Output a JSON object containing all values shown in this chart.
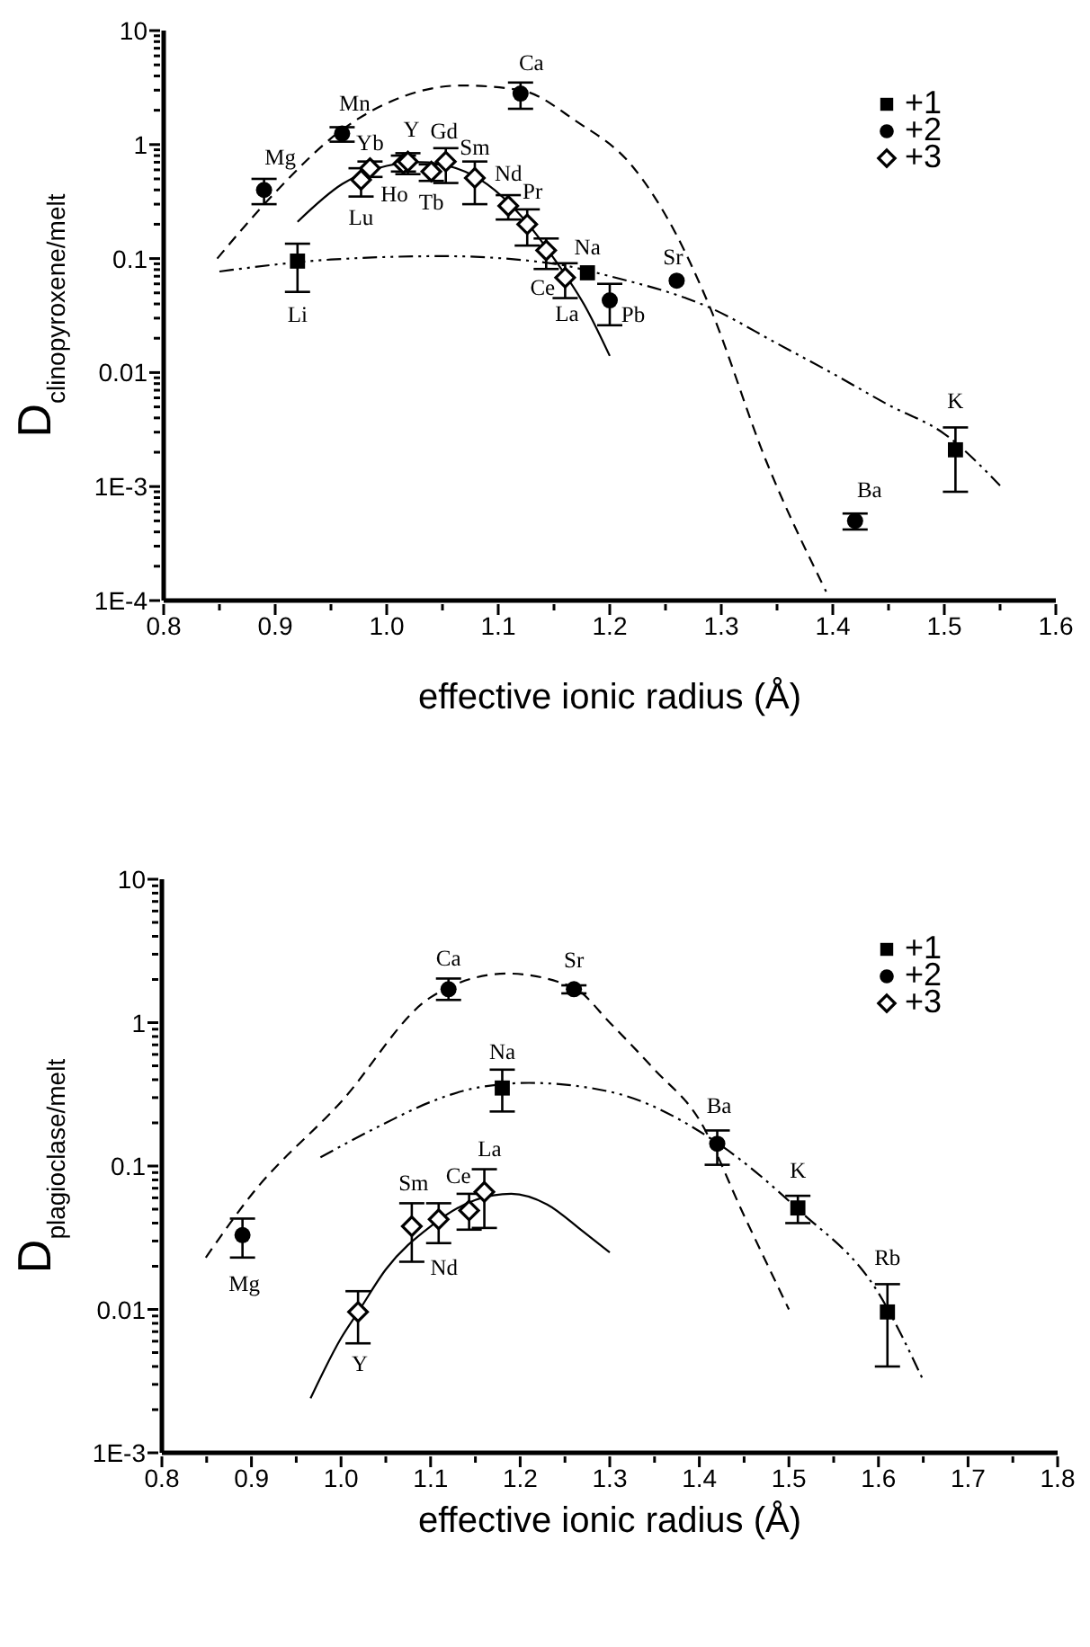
{
  "chart_data": [
    {
      "type": "scatter",
      "xlabel": "effective ionic radius (Å)",
      "ylabel": "D$_{clinopyroxene/melt}$",
      "log": "y",
      "legend": "top right",
      "xlim": [
        0.8,
        1.6
      ],
      "xticks": [
        0.8,
        {
          "value": 0.85,
          "label": null
        },
        0.9,
        {
          "value": 0.95,
          "label": null
        },
        {
          "value": 1,
          "label": "1.0"
        },
        {
          "value": 1.05,
          "label": null
        },
        1.1,
        {
          "value": 1.15,
          "label": null
        },
        1.2,
        {
          "value": 1.25,
          "label": null
        },
        1.3,
        {
          "value": 1.35,
          "label": null
        },
        1.4,
        {
          "value": 1.45,
          "label": null
        },
        1.5,
        {
          "value": 1.55,
          "label": null
        },
        1.6
      ],
      "ylim": [
        0.0001,
        10
      ],
      "yticks": [
        {
          "value": 0.0001,
          "label": "1E-4"
        },
        {
          "value": 0.0002,
          "label": null
        },
        {
          "value": 0.0003,
          "label": null
        },
        {
          "value": 0.0004,
          "label": null
        },
        {
          "value": 0.0005,
          "label": null
        },
        {
          "value": 0.0006,
          "label": null
        },
        {
          "value": 0.0007,
          "label": null
        },
        {
          "value": 0.0008,
          "label": null
        },
        {
          "value": 0.0009,
          "label": null
        },
        {
          "value": 0.001,
          "label": "1E-3"
        },
        {
          "value": 0.002,
          "label": null
        },
        {
          "value": 0.003,
          "label": null
        },
        {
          "value": 0.004,
          "label": null
        },
        {
          "value": 0.005,
          "label": null
        },
        {
          "value": 0.006,
          "label": null
        },
        {
          "value": 0.007,
          "label": null
        },
        {
          "value": 0.008,
          "label": null
        },
        {
          "value": 0.009,
          "label": null
        },
        0.01,
        {
          "value": 0.02,
          "label": null
        },
        {
          "value": 0.03,
          "label": null
        },
        {
          "value": 0.04,
          "label": null
        },
        {
          "value": 0.05,
          "label": null
        },
        {
          "value": 0.06,
          "label": null
        },
        {
          "value": 0.07,
          "label": null
        },
        {
          "value": 0.08,
          "label": null
        },
        {
          "value": 0.09,
          "label": null
        },
        0.1,
        {
          "value": 0.2,
          "label": null
        },
        {
          "value": 0.3,
          "label": null
        },
        {
          "value": 0.4,
          "label": null
        },
        {
          "value": 0.5,
          "label": null
        },
        {
          "value": 0.6,
          "label": null
        },
        {
          "value": 0.7,
          "label": null
        },
        {
          "value": 0.8,
          "label": null
        },
        {
          "value": 0.9,
          "label": null
        },
        1,
        {
          "value": 2,
          "label": null
        },
        {
          "value": 3,
          "label": null
        },
        {
          "value": 4,
          "label": null
        },
        {
          "value": 5,
          "label": null
        },
        {
          "value": 6,
          "label": null
        },
        {
          "value": 7,
          "label": null
        },
        {
          "value": 8,
          "label": null
        },
        {
          "value": 9,
          "label": null
        },
        10
      ],
      "series": [
        {
          "name": "+1",
          "type": "scatter",
          "marker": "square",
          "color": "#000000",
          "x": [
            0.92,
            1.18,
            1.51
          ],
          "values": [
            0.095,
            0.075,
            0.0021
          ],
          "errors": [
            [
              0.051,
              0.135
            ],
            null,
            [
              0.0009,
              0.0033
            ]
          ]
        },
        {
          "name": "+2",
          "type": "scatter",
          "marker": "circle",
          "color": "#000000",
          "x": [
            0.89,
            0.96,
            1.12,
            1.2,
            1.26,
            1.42
          ],
          "values": [
            0.4,
            1.25,
            2.8,
            0.043,
            0.064,
            0.0005
          ],
          "errors": [
            [
              0.3,
              0.5
            ],
            [
              1.06,
              1.42
            ],
            [
              2.06,
              3.5
            ],
            [
              0.026,
              0.06
            ],
            null,
            [
              0.00042,
              0.00058
            ]
          ]
        },
        {
          "name": "+3",
          "type": "scatter",
          "marker": "diamond",
          "color": "#000000",
          "x": [
            0.977,
            0.985,
            1.015,
            1.019,
            1.04,
            1.053,
            1.079,
            1.109,
            1.126,
            1.143,
            1.16
          ],
          "values": [
            0.49,
            0.62,
            0.68,
            0.71,
            0.58,
            0.71,
            0.51,
            0.29,
            0.2,
            0.118,
            0.068
          ],
          "errors": [
            [
              0.35,
              0.62
            ],
            [
              0.52,
              0.71
            ],
            [
              0.58,
              0.8
            ],
            [
              0.55,
              0.84
            ],
            [
              0.48,
              0.67
            ],
            [
              0.46,
              0.93
            ],
            [
              0.3,
              0.71
            ],
            [
              0.22,
              0.36
            ],
            [
              0.13,
              0.27
            ],
            [
              0.081,
              0.15
            ],
            [
              0.045,
              0.091
            ]
          ]
        },
        {
          "type": "line",
          "line_style": "dashdot",
          "color": "#000000",
          "x": [
            0.85,
            0.95,
            1.05,
            1.15,
            1.2,
            1.29,
            1.35,
            1.4,
            1.45,
            1.5,
            1.55
          ],
          "values": [
            0.077,
            0.098,
            0.105,
            0.09,
            0.07,
            0.037,
            0.018,
            0.0098,
            0.0052,
            0.0029,
            0.00102
          ]
        },
        {
          "type": "line",
          "line_style": "dashed",
          "color": "#000000",
          "x": [
            0.848,
            0.9,
            0.96,
            1.0,
            1.067,
            1.12,
            1.17,
            1.22,
            1.26,
            1.29,
            1.34,
            1.394
          ],
          "values": [
            0.1,
            0.38,
            1.35,
            2.3,
            3.3,
            3.0,
            1.6,
            0.65,
            0.16,
            0.037,
            0.0017,
            0.00012
          ]
        },
        {
          "type": "line",
          "line_style": "solid",
          "color": "#000000",
          "x": [
            0.92,
            0.96,
            1.0,
            1.03,
            1.06,
            1.09,
            1.12,
            1.15,
            1.18,
            1.2
          ],
          "values": [
            0.21,
            0.45,
            0.65,
            0.7,
            0.63,
            0.45,
            0.24,
            0.1,
            0.035,
            0.014
          ]
        }
      ],
      "annotations": [
        {
          "text": "Li",
          "x": 0.92,
          "y": 0.095
        },
        {
          "text": "Na",
          "x": 1.18,
          "y": 0.075
        },
        {
          "text": "K",
          "x": 1.51,
          "y": 0.0021
        },
        {
          "text": "Mg",
          "x": 0.89,
          "y": 0.4
        },
        {
          "text": "Mn",
          "x": 0.96,
          "y": 1.25
        },
        {
          "text": "Ca",
          "x": 1.12,
          "y": 2.8
        },
        {
          "text": "Pb",
          "x": 1.2,
          "y": 0.043
        },
        {
          "text": "Sr",
          "x": 1.26,
          "y": 0.064
        },
        {
          "text": "Ba",
          "x": 1.42,
          "y": 0.0005
        },
        {
          "text": "Lu",
          "x": 0.977,
          "y": 0.49
        },
        {
          "text": "Yb",
          "x": 0.985,
          "y": 0.62
        },
        {
          "text": "Ho",
          "x": 1.015,
          "y": 0.68
        },
        {
          "text": "Y",
          "x": 1.019,
          "y": 0.71
        },
        {
          "text": "Tb",
          "x": 1.04,
          "y": 0.58
        },
        {
          "text": "Gd",
          "x": 1.053,
          "y": 0.71
        },
        {
          "text": "Sm",
          "x": 1.079,
          "y": 0.51
        },
        {
          "text": "Nd",
          "x": 1.109,
          "y": 0.29
        },
        {
          "text": "Pr",
          "x": 1.126,
          "y": 0.2
        },
        {
          "text": "Ce",
          "x": 1.143,
          "y": 0.118
        },
        {
          "text": "La",
          "x": 1.16,
          "y": 0.068
        }
      ]
    },
    {
      "type": "scatter",
      "xlabel": "effective ionic radius (Å)",
      "ylabel": "D$_{plagioclase/melt}$",
      "log": "y",
      "legend": "top right",
      "xlim": [
        0.8,
        1.8
      ],
      "xticks": [
        0.8,
        {
          "value": 0.85,
          "label": null
        },
        0.9,
        {
          "value": 0.95,
          "label": null
        },
        {
          "value": 1,
          "label": "1.0"
        },
        {
          "value": 1.05,
          "label": null
        },
        1.1,
        {
          "value": 1.15,
          "label": null
        },
        1.2,
        {
          "value": 1.25,
          "label": null
        },
        1.3,
        {
          "value": 1.35,
          "label": null
        },
        1.4,
        {
          "value": 1.45,
          "label": null
        },
        1.5,
        {
          "value": 1.55,
          "label": null
        },
        1.6,
        {
          "value": 1.65,
          "label": null
        },
        1.7,
        {
          "value": 1.75,
          "label": null
        },
        1.8
      ],
      "ylim": [
        0.001,
        10
      ],
      "yticks": [
        {
          "value": 0.001,
          "label": "1E-3"
        },
        {
          "value": 0.002,
          "label": null
        },
        {
          "value": 0.003,
          "label": null
        },
        {
          "value": 0.004,
          "label": null
        },
        {
          "value": 0.005,
          "label": null
        },
        {
          "value": 0.006,
          "label": null
        },
        {
          "value": 0.007,
          "label": null
        },
        {
          "value": 0.008,
          "label": null
        },
        {
          "value": 0.009,
          "label": null
        },
        0.01,
        {
          "value": 0.02,
          "label": null
        },
        {
          "value": 0.03,
          "label": null
        },
        {
          "value": 0.04,
          "label": null
        },
        {
          "value": 0.05,
          "label": null
        },
        {
          "value": 0.06,
          "label": null
        },
        {
          "value": 0.07,
          "label": null
        },
        {
          "value": 0.08,
          "label": null
        },
        {
          "value": 0.09,
          "label": null
        },
        0.1,
        {
          "value": 0.2,
          "label": null
        },
        {
          "value": 0.3,
          "label": null
        },
        {
          "value": 0.4,
          "label": null
        },
        {
          "value": 0.5,
          "label": null
        },
        {
          "value": 0.6,
          "label": null
        },
        {
          "value": 0.7,
          "label": null
        },
        {
          "value": 0.8,
          "label": null
        },
        {
          "value": 0.9,
          "label": null
        },
        1,
        {
          "value": 2,
          "label": null
        },
        {
          "value": 3,
          "label": null
        },
        {
          "value": 4,
          "label": null
        },
        {
          "value": 5,
          "label": null
        },
        {
          "value": 6,
          "label": null
        },
        {
          "value": 7,
          "label": null
        },
        {
          "value": 8,
          "label": null
        },
        {
          "value": 9,
          "label": null
        },
        10
      ],
      "series": [
        {
          "name": "+1",
          "type": "scatter",
          "marker": "square",
          "color": "#000000",
          "x": [
            1.18,
            1.51,
            1.61
          ],
          "values": [
            0.35,
            0.051,
            0.0096
          ],
          "errors": [
            [
              0.24,
              0.47
            ],
            [
              0.04,
              0.062
            ],
            [
              0.004,
              0.015
            ]
          ]
        },
        {
          "name": "+2",
          "type": "scatter",
          "marker": "circle",
          "color": "#000000",
          "x": [
            0.89,
            1.12,
            1.26,
            1.42
          ],
          "values": [
            0.033,
            1.71,
            1.71,
            0.143
          ],
          "errors": [
            [
              0.023,
              0.043
            ],
            [
              1.44,
              2.03
            ],
            [
              1.6,
              1.82
            ],
            [
              0.102,
              0.177
            ]
          ]
        },
        {
          "name": "+3",
          "type": "scatter",
          "marker": "diamond",
          "color": "#000000",
          "x": [
            1.019,
            1.079,
            1.109,
            1.143,
            1.16
          ],
          "values": [
            0.0096,
            0.038,
            0.0425,
            0.049,
            0.066
          ],
          "errors": [
            [
              0.0058,
              0.0134
            ],
            [
              0.0215,
              0.055
            ],
            [
              0.029,
              0.055
            ],
            [
              0.036,
              0.064
            ],
            [
              0.037,
              0.095
            ]
          ]
        },
        {
          "type": "line",
          "line_style": "dashed",
          "color": "#000000",
          "x": [
            0.849,
            0.9,
            1.0,
            1.1,
            1.185,
            1.26,
            1.3,
            1.35,
            1.4,
            1.45,
            1.5
          ],
          "values": [
            0.023,
            0.063,
            0.28,
            1.5,
            2.2,
            1.75,
            1.0,
            0.47,
            0.21,
            0.045,
            0.01
          ]
        },
        {
          "type": "line",
          "line_style": "dashdot",
          "color": "#000000",
          "x": [
            0.977,
            1.05,
            1.1,
            1.15,
            1.21,
            1.3,
            1.42,
            1.51,
            1.6,
            1.65
          ],
          "values": [
            0.115,
            0.2,
            0.28,
            0.35,
            0.38,
            0.33,
            0.145,
            0.05,
            0.013,
            0.0032
          ]
        },
        {
          "type": "line",
          "line_style": "solid",
          "color": "#000000",
          "x": [
            0.966,
            1.0,
            1.02,
            1.05,
            1.1,
            1.15,
            1.19,
            1.23,
            1.27,
            1.3
          ],
          "values": [
            0.0024,
            0.0063,
            0.0098,
            0.019,
            0.038,
            0.058,
            0.064,
            0.054,
            0.035,
            0.025
          ]
        }
      ],
      "annotations": [
        {
          "text": "Na",
          "x": 1.18,
          "y": 0.35
        },
        {
          "text": "K",
          "x": 1.51,
          "y": 0.051
        },
        {
          "text": "Rb",
          "x": 1.61,
          "y": 0.0096
        },
        {
          "text": "Mg",
          "x": 0.89,
          "y": 0.033
        },
        {
          "text": "Ca",
          "x": 1.12,
          "y": 1.71
        },
        {
          "text": "Sr",
          "x": 1.26,
          "y": 1.71
        },
        {
          "text": "Ba",
          "x": 1.42,
          "y": 0.143
        },
        {
          "text": "Y",
          "x": 1.019,
          "y": 0.0096
        },
        {
          "text": "Sm",
          "x": 1.079,
          "y": 0.038
        },
        {
          "text": "Nd",
          "x": 1.109,
          "y": 0.0425
        },
        {
          "text": "Ce",
          "x": 1.143,
          "y": 0.049
        },
        {
          "text": "La",
          "x": 1.16,
          "y": 0.066
        }
      ]
    }
  ]
}
